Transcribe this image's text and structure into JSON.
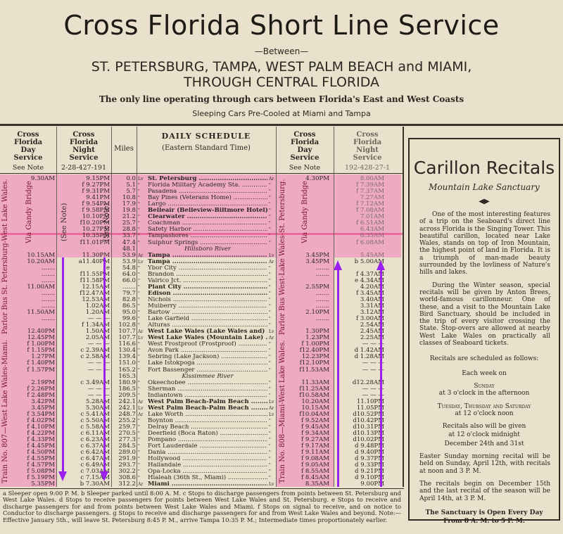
{
  "header": {
    "title": "Cross Florida Short Line Service",
    "between": "—Between—",
    "route_line1": "ST. PETERSBURG, TAMPA, WEST PALM BEACH and MIAMI,",
    "route_line2": "THROUGH CENTRAL FLORIDA",
    "tagline": "The only line operating through cars between Florida's East and West Coasts",
    "sleeping": "Sleeping Cars Pre-Cooled at Miami and Tampa"
  },
  "columns": {
    "day_south": {
      "label": "Cross Florida Day Service",
      "sub": "See Note"
    },
    "night_south": {
      "label": "Cross Florida Night Service",
      "sub": "2-28-427-191"
    },
    "miles": "Miles",
    "schedule": {
      "label": "DAILY SCHEDULE",
      "sub": "(Eastern Standard Time)"
    },
    "day_north": {
      "label": "Cross Florida Day Service",
      "sub": "See Note"
    },
    "night_north": {
      "label": "Cross Florida Night Service",
      "sub": "192-428-27-1"
    }
  },
  "vertical_labels": {
    "south_bus": "Parlor Bus St. Petersburg-West Lake Wales.",
    "south_train": "Train No. 807—West Lake Wales-Miami.",
    "north_bus": "Parlor Bus West-Lake Wales-St. Petersburg.",
    "north_train": "Train No. 808—Miami-West Lake Wales.",
    "via": "Via Gandy Bridge",
    "see_note": "(See Note)"
  },
  "colors": {
    "highlight_pink": "#efa0c0",
    "arrow_purple": "#9a20f0",
    "paper": "#e9e1cc"
  },
  "rows": [
    {
      "d": "9.30AM",
      "n": "9.15PM",
      "mi": "0.0",
      "m": "Lv",
      "st": "St. Petersburg",
      "r": "Ar",
      "nd": "4.30PM",
      "nn": "8.00AM",
      "b": true
    },
    {
      "d": "",
      "n": "f 9.27PM",
      "mi": "5.1",
      "m": "\"",
      "st": "Florida Military Academy Sta.",
      "r": "\"",
      "nd": "",
      "nn": "f 7.39AM"
    },
    {
      "d": "",
      "n": "f 9.31PM",
      "mi": "5.7",
      "m": "\"",
      "st": "Pasadena",
      "r": "\"",
      "nd": "",
      "nn": "f 7.37AM"
    },
    {
      "d": "",
      "n": "9.41PM",
      "mi": "10.8",
      "m": "\"",
      "st": "Bay Pines (Veterans Home)",
      "r": "\"",
      "nd": "",
      "nn": "7.27AM"
    },
    {
      "d": "",
      "n": "f 9.54PM",
      "mi": "17.9",
      "m": "\"",
      "st": "Largo",
      "r": "\"",
      "nd": "",
      "nn": "f 7.12AM"
    },
    {
      "d": "",
      "n": "f 9.58PM",
      "mi": "19.8",
      "m": "\"",
      "st": "Belleair (Belleview-Biltmore Hotel)",
      "r": "\"",
      "nd": "",
      "nn": "f 7.08AM",
      "b": true
    },
    {
      "d": "",
      "n": "10.10PM",
      "mi": "21.2",
      "m": "\"",
      "st": "Clearwater",
      "r": "\"",
      "nd": "",
      "nn": "7.01AM",
      "b": true
    },
    {
      "d": "",
      "n": "f10.20PM",
      "mi": "25.7",
      "m": "\"",
      "st": "Coachman",
      "r": "\"",
      "nd": "",
      "nn": "f 6.51AM"
    },
    {
      "d": "",
      "n": "10.27PM",
      "mi": "28.8",
      "m": "\"",
      "st": "Safety Harbor",
      "r": "\"",
      "nd": "",
      "nn": "6.43AM"
    },
    {
      "d": "",
      "n": "10.35PM",
      "mi": "33.7",
      "m": "\"",
      "st": "Tampashores",
      "r": "\"",
      "nd": "",
      "nn": "6.35AM"
    },
    {
      "d": "",
      "n": "f11.01PM",
      "mi": "47.4",
      "m": "\"",
      "st": "Sulphur Springs",
      "r": "\"",
      "nd": "",
      "nn": "f 6.08AM"
    },
    {
      "d": "",
      "n": "",
      "mi": "48.1",
      "m": "",
      "st": "Hillsboro River",
      "r": "",
      "nd": "",
      "nn": "",
      "river": true
    },
    {
      "d": "10.15AM",
      "n": "11.30PM",
      "mi": "53.9",
      "m": "Ar",
      "st": "Tampa",
      "r": "Lv",
      "nd": "3.45PM",
      "nn": "5.45AM",
      "b": true
    },
    {
      "d": "10.20AM",
      "n": "a11.40PM",
      "mi": "53.9",
      "m": "Lv",
      "st": "Tampa",
      "r": "Ar",
      "nd": "3.45PM",
      "nn": "b 5.00AM",
      "b": true
    },
    {
      "d": ".......",
      "n": "e",
      "mi": "54.8",
      "m": "\"",
      "st": "Ybor City",
      "r": "\"",
      "nd": ".......",
      "nn": "e"
    },
    {
      "d": ".......",
      "n": "f11.55PM",
      "mi": "64.0",
      "m": "\"",
      "st": "Brandon",
      "r": "\"",
      "nd": ".......",
      "nn": "f 4.37AM"
    },
    {
      "d": ".......",
      "n": "f11.58PM",
      "mi": "66.0",
      "m": "\"",
      "st": "Valrico Jct.",
      "r": "\"",
      "nd": "",
      "nn": "e 4.34AM"
    },
    {
      "d": "11.00AM",
      "n": "12.15AM",
      "mi": ".......",
      "m": "\"",
      "st": "Plant City",
      "r": "\"",
      "nd": "2.55PM",
      "nn": "4.20AM",
      "b": true
    },
    {
      "d": ".......",
      "n": "f12.47AM",
      "mi": "79.7",
      "m": "\"",
      "st": "Edison",
      "r": "\"",
      "nd": ".......",
      "nn": "f 3.45AM",
      "b": true
    },
    {
      "d": ".......",
      "n": "12.53AM",
      "mi": "82.8",
      "m": "\"",
      "st": "Nichols",
      "r": "\"",
      "nd": ".......",
      "nn": "3.40AM"
    },
    {
      "d": ".......",
      "n": "1.02AM",
      "mi": "86.5",
      "m": "\"",
      "st": "Mulberry",
      "r": "\"",
      "nd": ".......",
      "nn": "3.31AM"
    },
    {
      "d": "11.50AM",
      "n": "1.20AM",
      "mi": "95.0",
      "m": "\"",
      "st": "Bartow",
      "r": "\"",
      "nd": "2.10PM",
      "nn": "3.12AM"
    },
    {
      "d": ".......",
      "n": "— — —",
      "mi": "99.6",
      "m": "\"",
      "st": "Lake Garfield",
      "r": "\"",
      "nd": ".......",
      "nn": "f 3.00AM"
    },
    {
      "d": "",
      "n": "f 1.34AM",
      "mi": "102.8",
      "m": "\"",
      "st": "Alturas",
      "r": "\"",
      "nd": "",
      "nn": "2.54AM"
    },
    {
      "d": "12.40PM",
      "n": "1.50AM",
      "mi": "107.7",
      "m": "Ar",
      "st": "West Lake Wales (Lake Wales and)",
      "r": "Lv",
      "nd": "1.30PM",
      "nn": "2.45AM",
      "b": true
    },
    {
      "d": "12.45PM",
      "n": "2.05AM",
      "mi": "107.7",
      "m": "Lv",
      "st": "West Lake Wales (Mountain Lake)",
      "r": "Ar",
      "nd": "1.23PM",
      "nn": "2.25AM",
      "b": true
    },
    {
      "d": "f 1.00PM",
      "n": "— — —",
      "mi": "116.6",
      "m": "\"",
      "st": "West Frostproof (Frostproof)",
      "r": "\"",
      "nd": "f 1.00PM",
      "nn": "— — —"
    },
    {
      "d": "f 1.15PM",
      "n": "c 2.39AM",
      "mi": "130.4",
      "m": "\"",
      "st": "Avon Park",
      "r": "\"",
      "nd": "f12.40PM",
      "nn": "d 1.42AM"
    },
    {
      "d": "1.27PM",
      "n": "c 2.58AM",
      "mi": "139.4",
      "m": "\"",
      "st": "Sebring (Lake Jackson)",
      "r": "\"",
      "nd": "12.23PM",
      "nn": "d 1.28AM"
    },
    {
      "d": "f 1.40PM",
      "n": "— — —",
      "mi": "151.0",
      "m": "\"",
      "st": "Lake Istokpoga",
      "r": "\"",
      "nd": "f12.10PM",
      "nn": "— — —"
    },
    {
      "d": "f 1.57PM",
      "n": "— — —",
      "mi": "165.2",
      "m": "\"",
      "st": "Fort Bassenger",
      "r": "\"",
      "nd": "f11.53AM",
      "nn": "— — —"
    },
    {
      "d": "",
      "n": "",
      "mi": "165.3",
      "m": "",
      "st": "Kissimmee River",
      "r": "",
      "nd": "",
      "nn": "",
      "river": true
    },
    {
      "d": "2.19PM",
      "n": "c 3.49AM",
      "mi": "180.9",
      "m": "\"",
      "st": "Okeechobee",
      "r": "\"",
      "nd": "11.33AM",
      "nn": "d12.28AM"
    },
    {
      "d": "f 2.26PM",
      "n": "— — —",
      "mi": "186.5",
      "m": "\"",
      "st": "Sherman",
      "r": "\"",
      "nd": "f11.25AM",
      "nn": "— — —"
    },
    {
      "d": "f 2.48PM",
      "n": "— — —",
      "mi": "209.5",
      "m": "\"",
      "st": "Indiantown",
      "r": "\"",
      "nd": "f10.58AM",
      "nn": "— — —"
    },
    {
      "d": "3.42PM",
      "n": "5.28AM",
      "mi": "242.1",
      "m": "Ar",
      "st": "West Palm Beach-Palm Beach",
      "r": "Lv",
      "nd": "10.20AM",
      "nn": "11.10PM",
      "b": true
    },
    {
      "d": "3.45PM",
      "n": "5.30AM",
      "mi": "242.1",
      "m": "Lv",
      "st": "West Palm Beach-Palm Beach",
      "r": "Ar",
      "nd": "10.15AM",
      "nn": "11.05PM",
      "b": true
    },
    {
      "d": "f 3.54PM",
      "n": "c 5.41AM",
      "mi": "248.7",
      "m": "Ar",
      "st": "Lake Worth",
      "r": "Lv",
      "nd": "f10.04AM",
      "nn": "d10.52PM"
    },
    {
      "d": "f 4.02PM",
      "n": "c 5.50AM",
      "mi": "255.2",
      "m": "\"",
      "st": "Boynton",
      "r": "\"",
      "nd": "f 9.52AM",
      "nn": "d10.42PM"
    },
    {
      "d": "f 4.10PM",
      "n": "c 5.58AM",
      "mi": "259.7",
      "m": "\"",
      "st": "Delray Beach",
      "r": "\"",
      "nd": "f 9.45AM",
      "nn": "d10.31PM"
    },
    {
      "d": "f 4.22PM",
      "n": "c 6.11AM",
      "mi": "270.5",
      "m": "\"",
      "st": "Deerfield (Boca Raton)",
      "r": "\"",
      "nd": "f 9.34AM",
      "nn": "d10.13PM"
    },
    {
      "d": "f 4.33PM",
      "n": "c 6.23AM",
      "mi": "277.3",
      "m": "\"",
      "st": "Pompano",
      "r": "\"",
      "nd": "f 9.27AM",
      "nn": "d10.02PM"
    },
    {
      "d": "f 4.45PM",
      "n": "c 6.37AM",
      "mi": "284.5",
      "m": "\"",
      "st": "Fort Lauderdale",
      "r": "\"",
      "nd": "f 9.17AM",
      "nn": "d 9.48PM"
    },
    {
      "d": "f 4.50PM",
      "n": "c 6.42AM",
      "mi": "289.0",
      "m": "\"",
      "st": "Dania",
      "r": "\"",
      "nd": "f 9.11AM",
      "nn": "d 9.40PM"
    },
    {
      "d": "f 4.55PM",
      "n": "c 6.47AM",
      "mi": "291.9",
      "m": "\"",
      "st": "Hollywood",
      "r": "\"",
      "nd": "f 9.08AM",
      "nn": "d 9.37PM"
    },
    {
      "d": "f 4.57PM",
      "n": "c 6.49AM",
      "mi": "293.7",
      "m": "\"",
      "st": "Hallandale",
      "r": "\"",
      "nd": "f 9.05AM",
      "nn": "d 9.33PM"
    },
    {
      "d": "f 5.08PM",
      "n": "c 7.03AM",
      "mi": "302.2",
      "m": "\"",
      "st": "Opa-Locka",
      "r": "\"",
      "nd": "f 8.55AM",
      "nn": "d 9.21PM"
    },
    {
      "d": "f 5.19PM",
      "n": "c 7.15AM",
      "mi": "308.6",
      "m": "\"",
      "st": "Hialeah (36th St., Miami)",
      "r": "\"",
      "nd": "f 8.45AM",
      "nn": "d 9.10PM"
    },
    {
      "d": "5.35PM",
      "n": "b 7.30AM",
      "mi": "312.2",
      "m": "Ar",
      "st": "Miami",
      "r": "Lv",
      "nd": "8.35AM",
      "nn": "9.00PM",
      "b": true
    }
  ],
  "notes": "a Sleeper open 9:00 P. M.   b Sleeper parked until 8:00 A. M.   c Stops to discharge passengers from points between St. Petersburg and West Lake Wales.   d Stops to receive passengers for points between West Lake Wales and St. Petersburg.   e Stops to receive and discharge passengers for and from points between West Lake Wales and Miami.   f Stops on signal to receive, and on notice to Conductor to discharge passengers.   g Stops to receive and discharge passengers for and from West Lake Wales and beyond.   Note:—Effective January 5th., will leave St. Petersburg 8:45 P. M., arrive Tampa 10:35 P. M.; Intermediate times proportionately earlier.",
  "panel": {
    "title": "Carillon Recitals",
    "subtitle": "Mountain Lake Sanctuary",
    "ornament": "◀▶",
    "para1": "One of the most interesting features of a trip on the Seaboard's direct line across Florida is the Singing Tower. This beautiful carillon, located near Lake Wales, stands on top of Iron Mountain, the highest point of land in Florida. It is a triumph of man-made beauty surrounded by the lovliness of Nature's hills and lakes.",
    "para2": "During the Winter season, special recitals will be given by Anton Brees, world-famous carillonneur. One of these, and a visit to the Mountain Lake Bird Sanctuary, should be included in the trip of every visitor crossing the State. Stop-overs are allowed at nearby West Lake Wales on practically all classes of Seaboard tickets.",
    "schedule_intro": "Recitals are scheduled as follows:",
    "each_week": "Each week on",
    "sunday": "Sunday",
    "sunday_time": "at 3 o'clock in the afternoon",
    "weekdays": "Tuesday, Thursday and Saturday",
    "weekdays_time": "at 12 o'clock noon",
    "special1": "Recitals also will be given",
    "special2": "at 12 o'clock midnight",
    "special3": "December 24th and 31st",
    "easter": "Easter Sunday morning recital will be held on Sunday, April 12th, with recitals at noon and 3 P. M.",
    "season": "The recitals begin on December 15th and the last recital of the season will be April 14th, at 3 P. M.",
    "open1": "The Sanctuary is Open Every Day",
    "open2": "From 8 A. M. to 5 P. M."
  }
}
